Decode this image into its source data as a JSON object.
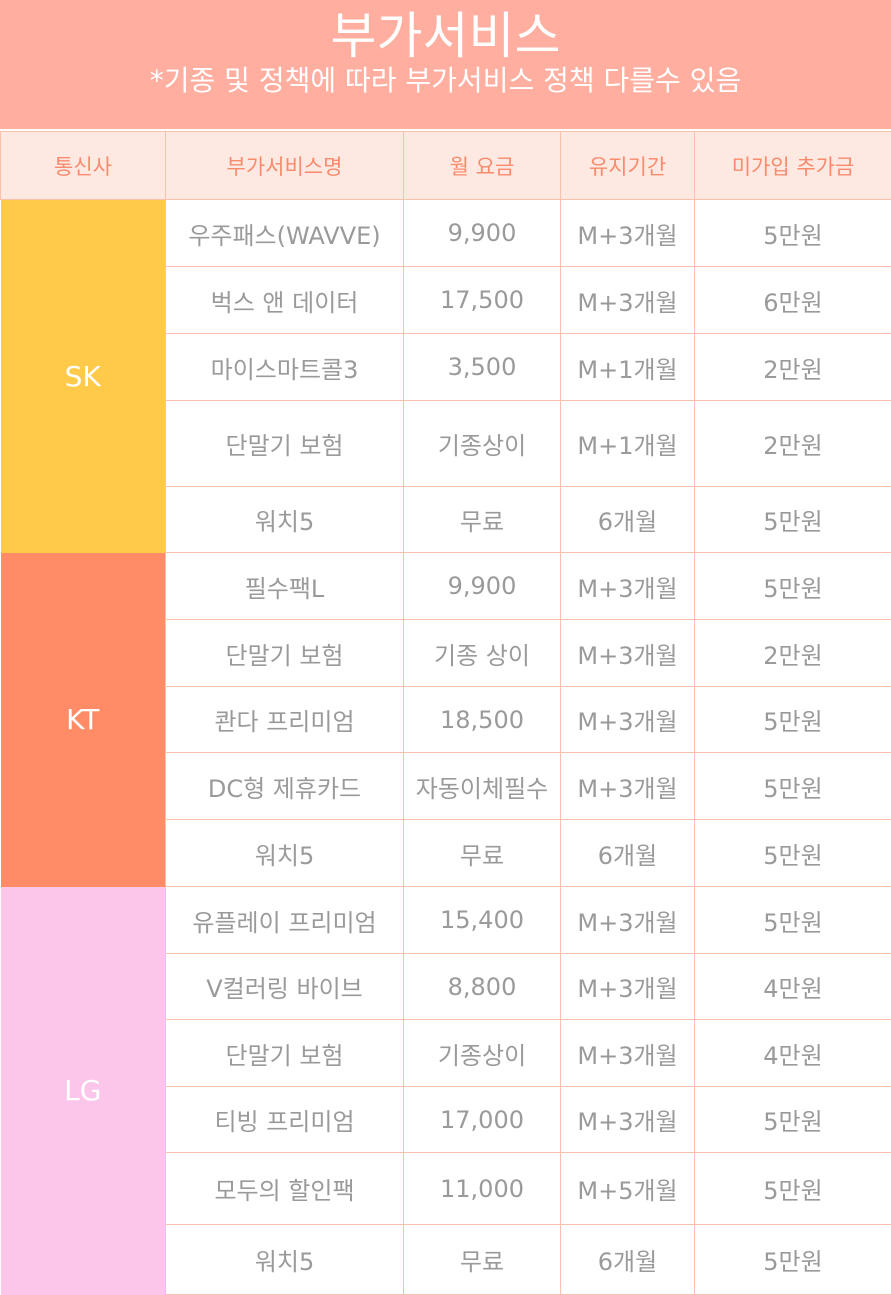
{
  "banner": {
    "title": "부가서비스",
    "subtitle": "*기종 및 정책에 따라 부가서비스 정책 다를수 있음"
  },
  "columns": [
    "통신사",
    "부가서비스명",
    "월 요금",
    "유지기간",
    "미가입 추가금"
  ],
  "colors": {
    "banner": "#ffaea0",
    "header_row": "#fde8e2",
    "header_text": "#f98b6c",
    "SK": "#ffc94a",
    "KT": "#ff8c66",
    "LG": "#fcc5ea",
    "cell_text": "#9a9a9a",
    "border": "#fcc0ad"
  },
  "groups": [
    {
      "carrier": "SK",
      "rows": [
        [
          "우주패스(WAVVE)",
          "9,900",
          "M+3개월",
          "5만원"
        ],
        [
          "벅스 앤 데이터",
          "17,500",
          "M+3개월",
          "6만원"
        ],
        [
          "마이스마트콜3",
          "3,500",
          "M+1개월",
          "2만원"
        ],
        [
          "단말기 보험",
          "기종상이",
          "M+1개월",
          "2만원"
        ],
        [
          "워치5",
          "무료",
          "6개월",
          "5만원"
        ]
      ]
    },
    {
      "carrier": "KT",
      "rows": [
        [
          "필수팩L",
          "9,900",
          "M+3개월",
          "5만원"
        ],
        [
          "단말기 보험",
          "기종 상이",
          "M+3개월",
          "2만원"
        ],
        [
          "콴다 프리미엄",
          "18,500",
          "M+3개월",
          "5만원"
        ],
        [
          "DC형 제휴카드",
          "자동이체필수",
          "M+3개월",
          "5만원"
        ],
        [
          "워치5",
          "무료",
          "6개월",
          "5만원"
        ]
      ]
    },
    {
      "carrier": "LG",
      "rows": [
        [
          "유플레이 프리미엄",
          "15,400",
          "M+3개월",
          "5만원"
        ],
        [
          "V컬러링 바이브",
          "8,800",
          "M+3개월",
          "4만원"
        ],
        [
          "단말기 보험",
          "기종상이",
          "M+3개월",
          "4만원"
        ],
        [
          "티빙 프리미엄",
          "17,000",
          "M+3개월",
          "5만원"
        ],
        [
          "모두의 할인팩",
          "11,000",
          "M+5개월",
          "5만원"
        ],
        [
          "워치5",
          "무료",
          "6개월",
          "5만원"
        ]
      ]
    }
  ]
}
